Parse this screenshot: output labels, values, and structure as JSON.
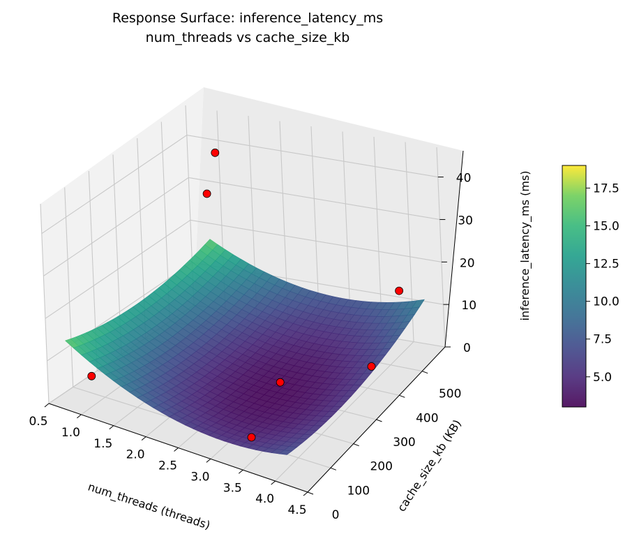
{
  "chart_data": {
    "type": "surface3d",
    "title_line1": "Response Surface: inference_latency_ms",
    "title_line2": "num_threads vs cache_size_kb",
    "xlabel": "num_threads (threads)",
    "ylabel": "cache_size_kb (KB)",
    "zlabel": "inference_latency_ms (ms)",
    "xlim": [
      0.5,
      4.5
    ],
    "ylim": [
      0,
      600
    ],
    "zlim": [
      0,
      47
    ],
    "x_ticks": [
      "0.5",
      "1.0",
      "1.5",
      "2.0",
      "2.5",
      "3.0",
      "3.5",
      "4.0",
      "4.5"
    ],
    "y_ticks": [
      "0",
      "100",
      "200",
      "300",
      "400",
      "500"
    ],
    "z_ticks": [
      "0",
      "10",
      "20",
      "30",
      "40"
    ],
    "colormap": "viridis",
    "colorbar": {
      "range": [
        3.0,
        19.0
      ],
      "ticks": [
        "5.0",
        "7.5",
        "10.0",
        "12.5",
        "15.0",
        "17.5"
      ]
    },
    "surface": {
      "model": "z = c0 + cx*(x - x0)^2 + cy*(y - y0)^2 + cxy*(x - x0)*(y - y0)",
      "x_range": [
        0.8,
        4.2
      ],
      "y_range": [
        0,
        600
      ],
      "c0": 3.2,
      "x0": 3.1,
      "y0": 250,
      "cx": 1.9,
      "cy": 3.5e-05,
      "cxy": 0.0016
    },
    "observed_points": [
      {
        "x": 0.8,
        "y": 100,
        "z": 4.0
      },
      {
        "x": 1.1,
        "y": 560,
        "z": 39.0
      },
      {
        "x": 1.1,
        "y": 520,
        "z": 31.0
      },
      {
        "x": 3.2,
        "y": 120,
        "z": 0.0
      },
      {
        "x": 3.0,
        "y": 300,
        "z": 3.0
      },
      {
        "x": 4.0,
        "y": 420,
        "z": 4.0
      },
      {
        "x": 4.3,
        "y": 470,
        "z": 20.0
      }
    ],
    "point_color": "#ff0000",
    "grid": true,
    "colorbar_position": "right"
  }
}
